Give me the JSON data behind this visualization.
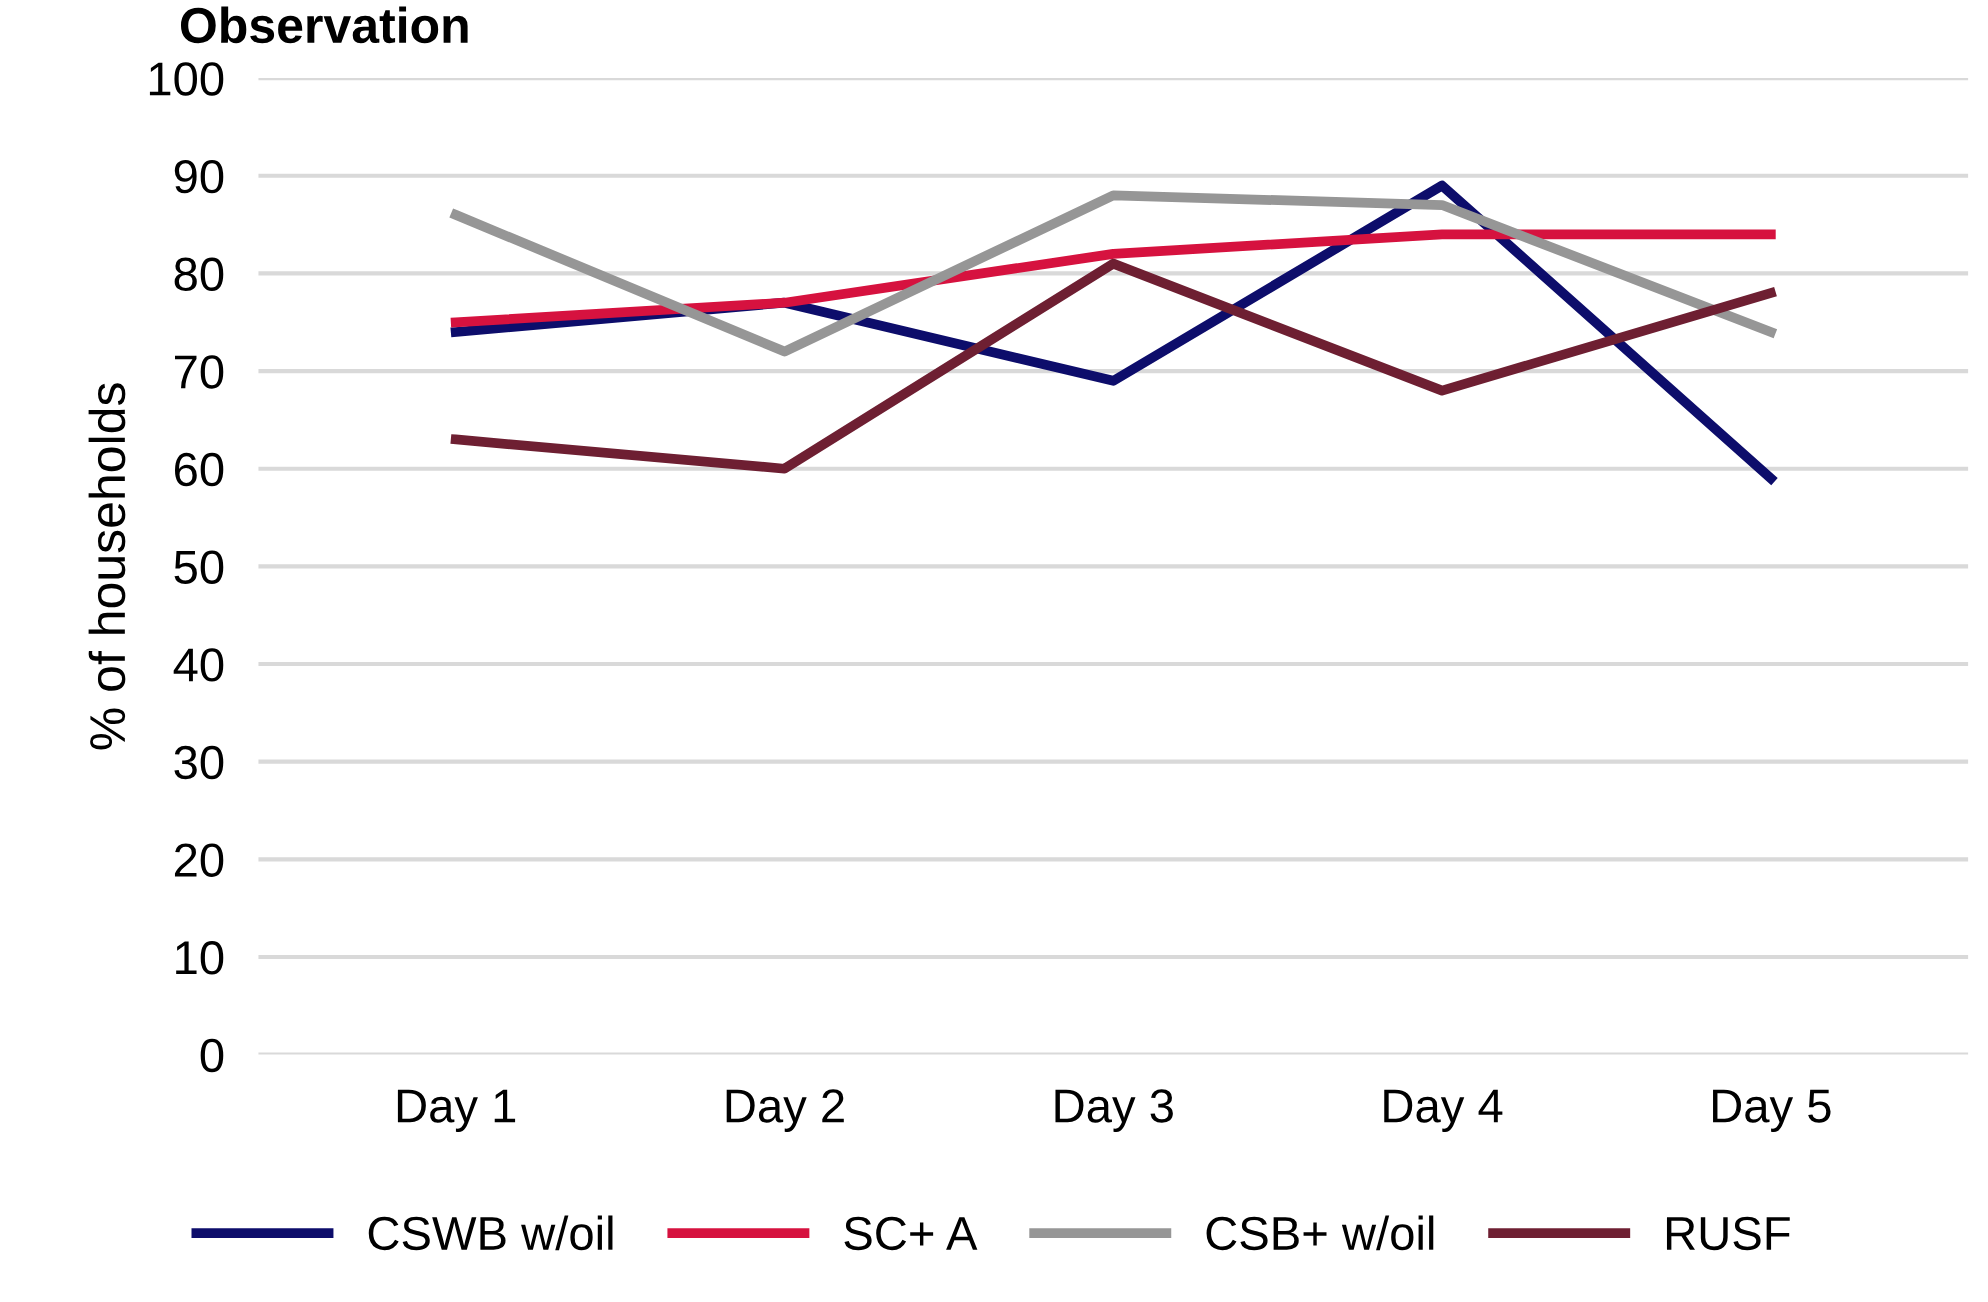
{
  "chart_data": {
    "type": "line",
    "title": "Observation",
    "ylabel": "% of households",
    "categories": [
      "Day 1",
      "Day 2",
      "Day 3",
      "Day 4",
      "Day 5"
    ],
    "series": [
      {
        "name": "CSWB w/oil",
        "color": "#0d0d6b",
        "values": [
          74,
          77,
          69,
          89,
          59
        ]
      },
      {
        "name": "SC+ A",
        "color": "#d6123f",
        "values": [
          75,
          77,
          82,
          84,
          84
        ]
      },
      {
        "name": "CSB+ w/oil",
        "color": "#969696",
        "values": [
          86,
          72,
          88,
          87,
          74
        ]
      },
      {
        "name": "RUSF",
        "color": "#6e1f32",
        "values": [
          63,
          60,
          81,
          68,
          78
        ]
      }
    ],
    "ylim": [
      0,
      100
    ],
    "yticks": [
      0,
      10,
      20,
      30,
      40,
      50,
      60,
      70,
      80,
      90,
      100
    ],
    "grid": "y",
    "legend": "bottom",
    "marker": "none",
    "line_style": "solid"
  }
}
